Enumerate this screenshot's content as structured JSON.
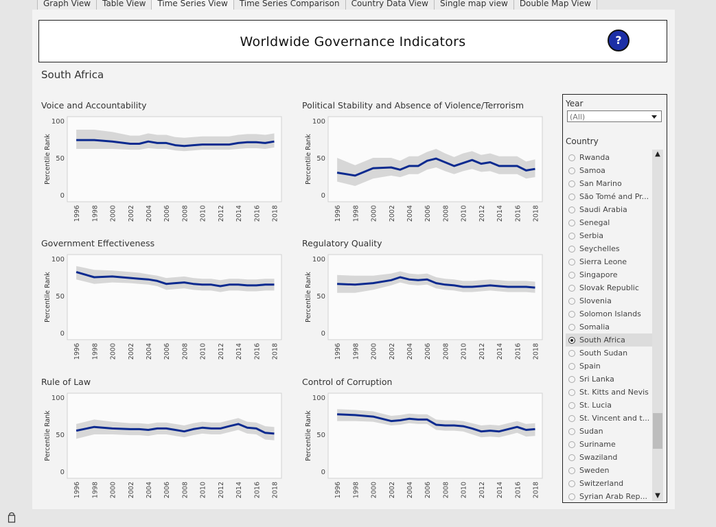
{
  "tabs": [
    "Graph View",
    "Table View",
    "Time Series View",
    "Time Series Comparison",
    "Country Data View",
    "Single map view",
    "Double Map View"
  ],
  "active_tab": "Time Series View",
  "header": {
    "title": "Worldwide Governance Indicators",
    "help_label": "?"
  },
  "country": "South Africa",
  "filters": {
    "year_label": "Year",
    "year_value": "(All)",
    "country_label": "Country",
    "countries": [
      "Rwanda",
      "Samoa",
      "San Marino",
      "São Tomé and Pr...",
      "Saudi Arabia",
      "Senegal",
      "Serbia",
      "Seychelles",
      "Sierra Leone",
      "Singapore",
      "Slovak Republic",
      "Slovenia",
      "Solomon Islands",
      "Somalia",
      "South Africa",
      "South Sudan",
      "Spain",
      "Sri Lanka",
      "St. Kitts and Nevis",
      "St. Lucia",
      "St. Vincent and t...",
      "Sudan",
      "Suriname",
      "Swaziland",
      "Sweden",
      "Switzerland",
      "Syrian Arab Rep..."
    ],
    "selected_country": "South Africa"
  },
  "colors": {
    "line": "#0b2a8f",
    "band": "#d7d7d7",
    "accent": "#1c2fa6"
  },
  "chart_data": [
    {
      "type": "line",
      "title": "Voice and Accountability",
      "ylabel": "Percentile Rank",
      "ylim": [
        0,
        100
      ],
      "yticks": [
        100,
        50,
        0
      ],
      "x": [
        1996,
        1998,
        2000,
        2002,
        2003,
        2004,
        2005,
        2006,
        2007,
        2008,
        2009,
        2010,
        2011,
        2012,
        2013,
        2014,
        2015,
        2016,
        2017,
        2018
      ],
      "xticks": [
        1996,
        1998,
        2000,
        2002,
        2004,
        2006,
        2008,
        2010,
        2012,
        2014,
        2016,
        2018
      ],
      "values": [
        74,
        74,
        72,
        69,
        69,
        72,
        70,
        70,
        67,
        66,
        67,
        68,
        68,
        68,
        68,
        70,
        71,
        71,
        70,
        72
      ],
      "lower": [
        62,
        62,
        62,
        61,
        61,
        63,
        62,
        62,
        60,
        59,
        60,
        61,
        61,
        61,
        61,
        62,
        63,
        63,
        62,
        64
      ],
      "upper": [
        88,
        88,
        85,
        80,
        80,
        83,
        81,
        81,
        78,
        77,
        78,
        79,
        79,
        79,
        79,
        81,
        82,
        82,
        81,
        83
      ]
    },
    {
      "type": "line",
      "title": "Political Stability and Absence of Violence/Terrorism",
      "ylabel": "Percentile Rank",
      "ylim": [
        0,
        100
      ],
      "yticks": [
        100,
        50,
        0
      ],
      "x": [
        1996,
        1998,
        2000,
        2002,
        2003,
        2004,
        2005,
        2006,
        2007,
        2008,
        2009,
        2010,
        2011,
        2012,
        2013,
        2014,
        2015,
        2016,
        2017,
        2018
      ],
      "xticks": [
        1996,
        1998,
        2000,
        2002,
        2004,
        2006,
        2008,
        2010,
        2012,
        2014,
        2016,
        2018
      ],
      "values": [
        30,
        26,
        36,
        37,
        34,
        39,
        39,
        46,
        49,
        44,
        39,
        43,
        47,
        42,
        44,
        39,
        39,
        39,
        33,
        35
      ],
      "lower": [
        18,
        12,
        22,
        26,
        24,
        28,
        28,
        34,
        37,
        32,
        28,
        32,
        35,
        31,
        32,
        28,
        28,
        28,
        22,
        24
      ],
      "upper": [
        50,
        40,
        50,
        50,
        46,
        52,
        52,
        58,
        62,
        56,
        51,
        56,
        59,
        54,
        56,
        52,
        52,
        52,
        45,
        48
      ]
    },
    {
      "type": "line",
      "title": "Government Effectiveness",
      "ylabel": "Percentile Rank",
      "ylim": [
        0,
        100
      ],
      "yticks": [
        100,
        50,
        0
      ],
      "x": [
        1996,
        1998,
        2000,
        2002,
        2003,
        2004,
        2005,
        2006,
        2007,
        2008,
        2009,
        2010,
        2011,
        2012,
        2013,
        2014,
        2015,
        2016,
        2017,
        2018
      ],
      "xticks": [
        1996,
        1998,
        2000,
        2002,
        2004,
        2006,
        2008,
        2010,
        2012,
        2014,
        2016,
        2018
      ],
      "values": [
        82,
        75,
        76,
        74,
        73,
        72,
        70,
        66,
        67,
        68,
        66,
        65,
        65,
        63,
        65,
        65,
        64,
        64,
        65,
        65
      ],
      "lower": [
        72,
        66,
        68,
        67,
        66,
        65,
        63,
        58,
        59,
        60,
        58,
        57,
        57,
        55,
        57,
        57,
        56,
        56,
        57,
        57
      ],
      "upper": [
        90,
        85,
        84,
        82,
        81,
        79,
        77,
        74,
        75,
        76,
        74,
        73,
        73,
        71,
        73,
        73,
        72,
        72,
        73,
        73
      ]
    },
    {
      "type": "line",
      "title": "Regulatory Quality",
      "ylabel": "Percentile Rank",
      "ylim": [
        0,
        100
      ],
      "yticks": [
        100,
        50,
        0
      ],
      "x": [
        1996,
        1998,
        2000,
        2002,
        2003,
        2004,
        2005,
        2006,
        2007,
        2008,
        2009,
        2010,
        2011,
        2012,
        2013,
        2014,
        2015,
        2016,
        2017,
        2018
      ],
      "xticks": [
        1996,
        1998,
        2000,
        2002,
        2004,
        2006,
        2008,
        2010,
        2012,
        2014,
        2016,
        2018
      ],
      "values": [
        66,
        65,
        67,
        71,
        75,
        72,
        71,
        72,
        67,
        65,
        64,
        62,
        62,
        63,
        64,
        63,
        62,
        62,
        62,
        61
      ],
      "lower": [
        54,
        54,
        58,
        64,
        68,
        65,
        64,
        65,
        60,
        58,
        57,
        55,
        55,
        56,
        57,
        56,
        55,
        55,
        55,
        54
      ],
      "upper": [
        78,
        77,
        77,
        80,
        83,
        80,
        79,
        80,
        75,
        73,
        72,
        70,
        70,
        71,
        72,
        71,
        70,
        70,
        70,
        69
      ]
    },
    {
      "type": "line",
      "title": "Rule of Law",
      "ylabel": "Percentile Rank",
      "ylim": [
        0,
        100
      ],
      "yticks": [
        100,
        50,
        0
      ],
      "x": [
        1996,
        1998,
        2000,
        2002,
        2003,
        2004,
        2005,
        2006,
        2007,
        2008,
        2009,
        2010,
        2011,
        2012,
        2013,
        2014,
        2015,
        2016,
        2017,
        2018
      ],
      "xticks": [
        1996,
        1998,
        2000,
        2002,
        2004,
        2006,
        2008,
        2010,
        2012,
        2014,
        2016,
        2018
      ],
      "values": [
        55,
        60,
        58,
        57,
        57,
        56,
        58,
        58,
        56,
        54,
        57,
        59,
        58,
        58,
        61,
        64,
        59,
        58,
        52,
        51
      ],
      "lower": [
        44,
        50,
        50,
        49,
        49,
        48,
        50,
        50,
        48,
        46,
        49,
        51,
        50,
        50,
        53,
        56,
        51,
        50,
        43,
        42
      ],
      "upper": [
        64,
        70,
        67,
        65,
        65,
        64,
        66,
        66,
        64,
        62,
        65,
        67,
        66,
        66,
        69,
        72,
        67,
        66,
        61,
        60
      ]
    },
    {
      "type": "line",
      "title": "Control of Corruption",
      "ylabel": "Percentile Rank",
      "ylim": [
        0,
        100
      ],
      "yticks": [
        100,
        50,
        0
      ],
      "x": [
        1996,
        1998,
        2000,
        2002,
        2003,
        2004,
        2005,
        2006,
        2007,
        2008,
        2009,
        2010,
        2011,
        2012,
        2013,
        2014,
        2015,
        2016,
        2017,
        2018
      ],
      "xticks": [
        1996,
        1998,
        2000,
        2002,
        2004,
        2006,
        2008,
        2010,
        2012,
        2014,
        2016,
        2018
      ],
      "values": [
        77,
        76,
        74,
        68,
        69,
        71,
        70,
        70,
        63,
        62,
        62,
        61,
        58,
        54,
        55,
        54,
        57,
        60,
        56,
        57
      ],
      "lower": [
        68,
        68,
        67,
        62,
        63,
        65,
        64,
        64,
        56,
        55,
        55,
        54,
        50,
        46,
        47,
        46,
        49,
        52,
        47,
        48
      ],
      "upper": [
        84,
        83,
        81,
        75,
        76,
        78,
        77,
        77,
        70,
        69,
        69,
        68,
        65,
        62,
        63,
        62,
        65,
        68,
        64,
        65
      ]
    }
  ]
}
